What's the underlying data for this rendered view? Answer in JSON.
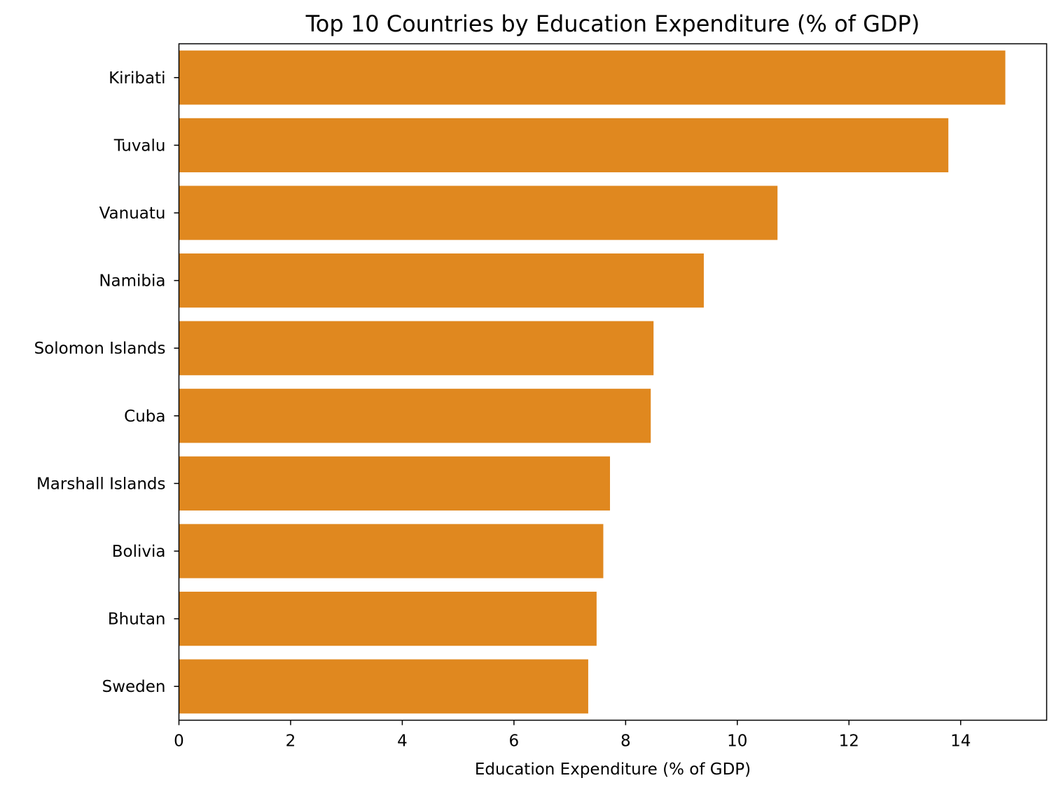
{
  "chart_data": {
    "type": "bar",
    "orientation": "horizontal",
    "title": "Top 10 Countries by Education Expenditure (% of GDP)",
    "xlabel": "Education Expenditure (% of GDP)",
    "ylabel": "",
    "categories": [
      "Kiribati",
      "Tuvalu",
      "Vanuatu",
      "Namibia",
      "Solomon Islands",
      "Cuba",
      "Marshall Islands",
      "Bolivia",
      "Bhutan",
      "Sweden"
    ],
    "values": [
      14.8,
      13.78,
      10.72,
      9.4,
      8.5,
      8.45,
      7.72,
      7.6,
      7.48,
      7.33
    ],
    "xlim": [
      0,
      15.54
    ],
    "xticks": [
      "0",
      "2",
      "4",
      "6",
      "8",
      "10",
      "12",
      "14"
    ],
    "grid": false,
    "bar_color": "#e0881f"
  }
}
